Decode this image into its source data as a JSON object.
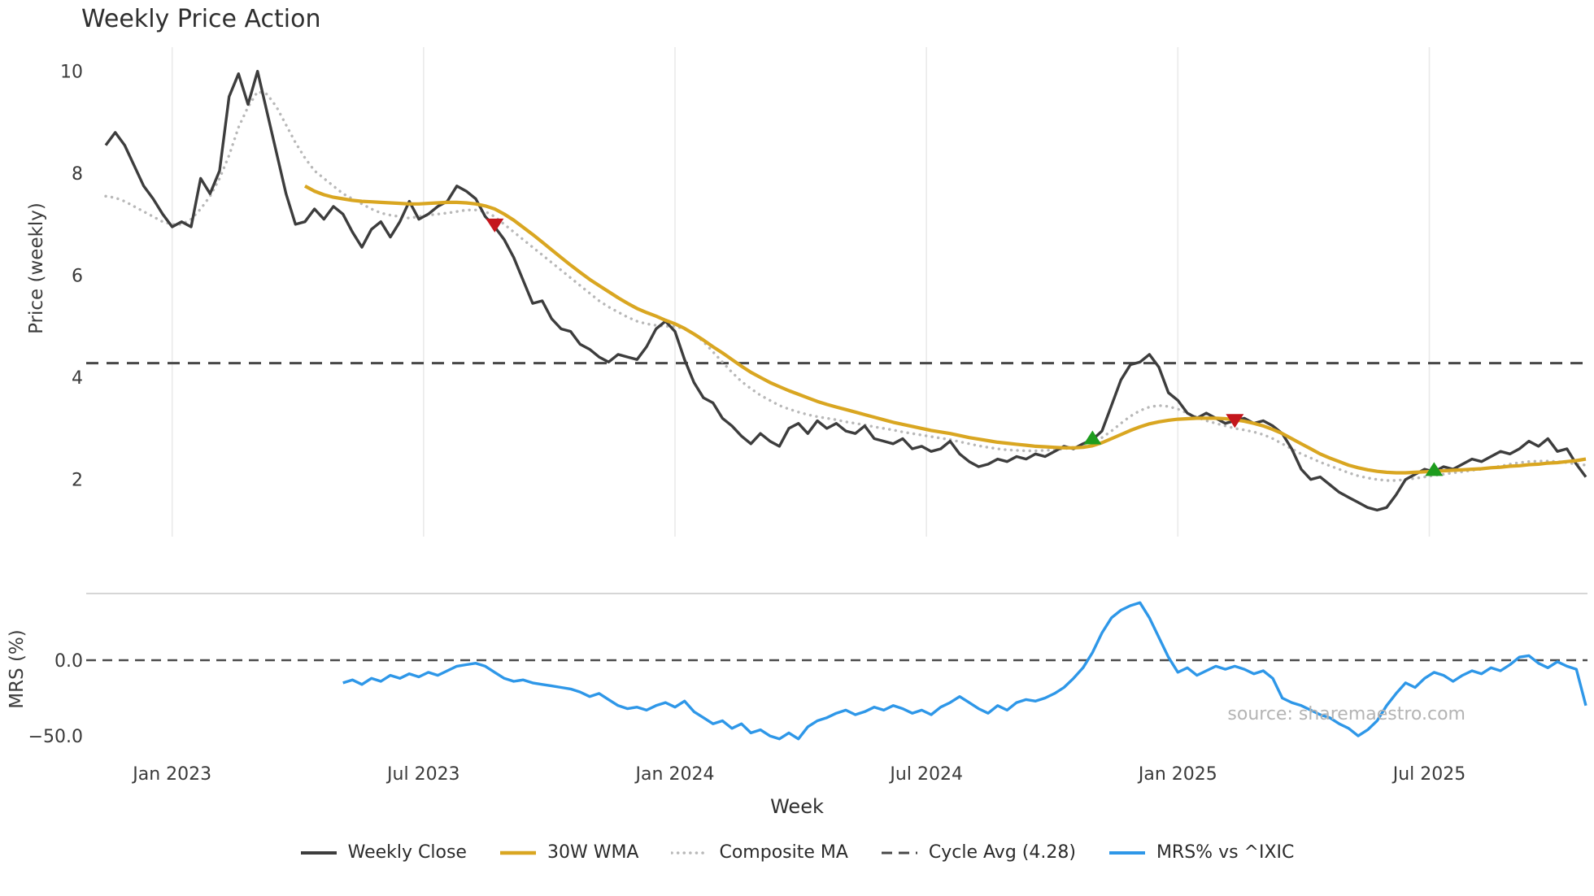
{
  "chart": {
    "title": "Weekly Price Action",
    "price_axis_label": "Price (weekly)",
    "mrs_axis_label": "MRS (%)",
    "x_axis_label": "Week",
    "watermark": "source: sharemaestro.com"
  },
  "chart_data": {
    "type": "line",
    "title": "Weekly Price Action",
    "xlabel": "Week",
    "x": {
      "unit": "week_index",
      "max_week": 156,
      "ticks": [
        {
          "week": 7,
          "label": "Jan 2023"
        },
        {
          "week": 33.5,
          "label": "Jul 2023"
        },
        {
          "week": 60,
          "label": "Jan 2024"
        },
        {
          "week": 86.5,
          "label": "Jul 2024"
        },
        {
          "week": 113,
          "label": "Jan 2025"
        },
        {
          "week": 139.5,
          "label": "Jul 2025"
        }
      ]
    },
    "panels": [
      {
        "name": "price",
        "ylabel": "Price (weekly)",
        "ylim": [
          0.88,
          10.2
        ],
        "yticks": [
          2,
          4,
          6,
          8,
          10
        ],
        "grid": "vertical",
        "series": [
          {
            "name": "Weekly Close",
            "color": "#3d3d3d",
            "style": "solid",
            "line_width": 3.4,
            "start_week": 0,
            "values": [
              8.55,
              8.8,
              8.55,
              8.15,
              7.75,
              7.5,
              7.2,
              6.95,
              7.05,
              6.95,
              7.9,
              7.6,
              8.05,
              9.5,
              9.95,
              9.35,
              10.0,
              9.2,
              8.4,
              7.6,
              7.0,
              7.05,
              7.3,
              7.1,
              7.35,
              7.2,
              6.85,
              6.55,
              6.9,
              7.05,
              6.75,
              7.05,
              7.45,
              7.1,
              7.2,
              7.35,
              7.45,
              7.75,
              7.65,
              7.5,
              7.15,
              6.95,
              6.7,
              6.35,
              5.9,
              5.45,
              5.5,
              5.15,
              4.95,
              4.9,
              4.65,
              4.55,
              4.4,
              4.3,
              4.45,
              4.4,
              4.35,
              4.6,
              4.95,
              5.1,
              4.9,
              4.35,
              3.9,
              3.6,
              3.5,
              3.2,
              3.05,
              2.85,
              2.7,
              2.9,
              2.75,
              2.65,
              3.0,
              3.1,
              2.9,
              3.15,
              3.0,
              3.1,
              2.95,
              2.9,
              3.05,
              2.8,
              2.75,
              2.7,
              2.8,
              2.6,
              2.65,
              2.55,
              2.6,
              2.75,
              2.5,
              2.35,
              2.25,
              2.3,
              2.4,
              2.35,
              2.45,
              2.4,
              2.5,
              2.45,
              2.55,
              2.65,
              2.6,
              2.7,
              2.78,
              2.95,
              3.45,
              3.95,
              4.25,
              4.3,
              4.45,
              4.2,
              3.7,
              3.55,
              3.3,
              3.2,
              3.3,
              3.2,
              3.1,
              3.15,
              3.2,
              3.1,
              3.15,
              3.05,
              2.9,
              2.6,
              2.2,
              2.0,
              2.05,
              1.9,
              1.75,
              1.65,
              1.55,
              1.45,
              1.4,
              1.45,
              1.7,
              2.0,
              2.1,
              2.2,
              2.15,
              2.25,
              2.2,
              2.3,
              2.4,
              2.35,
              2.45,
              2.55,
              2.5,
              2.6,
              2.75,
              2.65,
              2.8,
              2.55,
              2.6,
              2.3,
              2.05
            ]
          },
          {
            "name": "30W WMA",
            "color": "#d9a621",
            "style": "solid",
            "line_width": 4.2,
            "start_week": 21,
            "values": [
              7.75,
              7.65,
              7.58,
              7.53,
              7.5,
              7.47,
              7.45,
              7.44,
              7.43,
              7.42,
              7.41,
              7.4,
              7.4,
              7.41,
              7.42,
              7.43,
              7.43,
              7.42,
              7.4,
              7.36,
              7.3,
              7.2,
              7.08,
              6.94,
              6.8,
              6.65,
              6.5,
              6.35,
              6.2,
              6.06,
              5.92,
              5.8,
              5.68,
              5.56,
              5.45,
              5.35,
              5.27,
              5.2,
              5.12,
              5.05,
              4.96,
              4.85,
              4.73,
              4.6,
              4.48,
              4.35,
              4.22,
              4.1,
              4.0,
              3.9,
              3.82,
              3.74,
              3.67,
              3.6,
              3.53,
              3.47,
              3.42,
              3.37,
              3.32,
              3.27,
              3.22,
              3.17,
              3.12,
              3.08,
              3.04,
              3.0,
              2.96,
              2.93,
              2.9,
              2.86,
              2.82,
              2.79,
              2.76,
              2.73,
              2.71,
              2.69,
              2.67,
              2.65,
              2.64,
              2.63,
              2.62,
              2.62,
              2.63,
              2.66,
              2.72,
              2.8,
              2.88,
              2.96,
              3.03,
              3.09,
              3.13,
              3.16,
              3.18,
              3.19,
              3.2,
              3.2,
              3.2,
              3.19,
              3.17,
              3.14,
              3.1,
              3.05,
              2.98,
              2.9,
              2.8,
              2.7,
              2.6,
              2.5,
              2.42,
              2.35,
              2.28,
              2.23,
              2.19,
              2.16,
              2.14,
              2.13,
              2.13,
              2.14,
              2.15,
              2.16,
              2.17,
              2.18,
              2.19,
              2.2,
              2.21,
              2.23,
              2.24,
              2.26,
              2.27,
              2.29,
              2.3,
              2.32,
              2.33,
              2.35,
              2.37,
              2.4
            ]
          },
          {
            "name": "Composite MA",
            "color": "#b8b8b8",
            "style": "dotted",
            "line_width": 3.4,
            "start_week": 0,
            "values": [
              7.55,
              7.52,
              7.45,
              7.35,
              7.25,
              7.15,
              7.05,
              7.0,
              7.0,
              7.1,
              7.3,
              7.55,
              7.9,
              8.35,
              8.9,
              9.3,
              9.6,
              9.55,
              9.3,
              8.95,
              8.6,
              8.3,
              8.05,
              7.9,
              7.75,
              7.6,
              7.5,
              7.4,
              7.3,
              7.22,
              7.18,
              7.15,
              7.12,
              7.15,
              7.18,
              7.2,
              7.22,
              7.25,
              7.28,
              7.28,
              7.25,
              7.15,
              7.0,
              6.85,
              6.7,
              6.55,
              6.4,
              6.25,
              6.1,
              5.95,
              5.8,
              5.65,
              5.5,
              5.38,
              5.28,
              5.18,
              5.1,
              5.05,
              5.02,
              5.0,
              5.0,
              4.95,
              4.85,
              4.7,
              4.5,
              4.3,
              4.1,
              3.92,
              3.78,
              3.65,
              3.55,
              3.45,
              3.38,
              3.32,
              3.27,
              3.23,
              3.2,
              3.17,
              3.13,
              3.1,
              3.07,
              3.03,
              3.0,
              2.97,
              2.93,
              2.9,
              2.87,
              2.84,
              2.81,
              2.78,
              2.74,
              2.7,
              2.66,
              2.63,
              2.6,
              2.58,
              2.57,
              2.56,
              2.56,
              2.57,
              2.58,
              2.6,
              2.63,
              2.67,
              2.73,
              2.82,
              2.95,
              3.1,
              3.24,
              3.35,
              3.42,
              3.45,
              3.43,
              3.38,
              3.3,
              3.22,
              3.15,
              3.1,
              3.05,
              3.0,
              2.97,
              2.93,
              2.88,
              2.8,
              2.7,
              2.6,
              2.5,
              2.42,
              2.34,
              2.27,
              2.2,
              2.13,
              2.07,
              2.03,
              2.0,
              1.98,
              1.98,
              2.0,
              2.02,
              2.05,
              2.08,
              2.1,
              2.13,
              2.15,
              2.18,
              2.2,
              2.23,
              2.26,
              2.3,
              2.33,
              2.35,
              2.36,
              2.36,
              2.35,
              2.33,
              2.3,
              2.28
            ]
          },
          {
            "name": "Cycle Avg (4.28)",
            "color": "#474747",
            "style": "dashed",
            "line_width": 3,
            "const_value": 4.28
          }
        ],
        "signals": [
          {
            "week": 41,
            "price": 7.0,
            "type": "sell",
            "color": "#c4161c"
          },
          {
            "week": 104,
            "price": 2.8,
            "type": "buy",
            "color": "#1e9c1e"
          },
          {
            "week": 119,
            "price": 3.17,
            "type": "sell",
            "color": "#c4161c"
          },
          {
            "week": 140,
            "price": 2.18,
            "type": "buy",
            "color": "#1e9c1e"
          }
        ]
      },
      {
        "name": "mrs",
        "ylabel": "MRS (%)",
        "ylim": [
          -58,
          44
        ],
        "yticks": [
          {
            "value": 0,
            "label": "0.0"
          },
          {
            "value": -50,
            "label": "−50.0"
          }
        ],
        "zero_line": true,
        "series": [
          {
            "name": "MRS% vs ^IXIC",
            "color": "#2e97e8",
            "style": "solid",
            "line_width": 3.4,
            "start_week": 25,
            "values": [
              -15,
              -13,
              -16,
              -12,
              -14,
              -10,
              -12,
              -9,
              -11,
              -8,
              -10,
              -7,
              -4,
              -3,
              -2,
              -4,
              -8,
              -12,
              -14,
              -13,
              -15,
              -16,
              -17,
              -18,
              -19,
              -21,
              -24,
              -22,
              -26,
              -30,
              -32,
              -31,
              -33,
              -30,
              -28,
              -31,
              -27,
              -34,
              -38,
              -42,
              -40,
              -45,
              -42,
              -48,
              -46,
              -50,
              -52,
              -48,
              -52,
              -44,
              -40,
              -38,
              -35,
              -33,
              -36,
              -34,
              -31,
              -33,
              -30,
              -32,
              -35,
              -33,
              -36,
              -31,
              -28,
              -24,
              -28,
              -32,
              -35,
              -30,
              -33,
              -28,
              -26,
              -27,
              -25,
              -22,
              -18,
              -12,
              -5,
              5,
              18,
              28,
              33,
              36,
              38,
              28,
              15,
              2,
              -8,
              -5,
              -10,
              -7,
              -4,
              -6,
              -4,
              -6,
              -9,
              -7,
              -12,
              -25,
              -28,
              -30,
              -33,
              -36,
              -38,
              -42,
              -45,
              -50,
              -46,
              -40,
              -30,
              -22,
              -15,
              -18,
              -12,
              -8,
              -10,
              -14,
              -10,
              -7,
              -9,
              -5,
              -7,
              -3,
              2,
              3,
              -2,
              -5,
              -1,
              -4,
              -6,
              -30
            ]
          }
        ]
      }
    ],
    "legend": [
      {
        "label": "Weekly Close",
        "color": "#3d3d3d",
        "sample_weight": 4
      },
      {
        "label": "30W WMA",
        "color": "#d9a621",
        "sample_weight": 4.5
      },
      {
        "label": "Composite MA",
        "color": "#b8b8b8",
        "dotted": true,
        "sample_weight": 3.5
      },
      {
        "label": "Cycle Avg (4.28)",
        "color": "#474747",
        "dash": "13 8",
        "sample_weight": 3
      },
      {
        "label": "MRS% vs ^IXIC",
        "color": "#2e97e8",
        "sample_weight": 4
      }
    ],
    "watermark": "source: sharemaestro.com"
  }
}
